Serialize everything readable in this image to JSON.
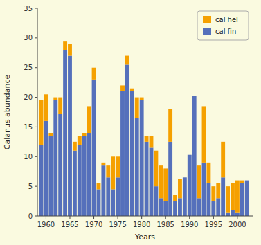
{
  "chart_data": {
    "type": "bar",
    "stacked": true,
    "xlabel": "Years",
    "ylabel": "Calanus abundance",
    "x": [
      1959,
      1960,
      1961,
      1962,
      1963,
      1964,
      1965,
      1966,
      1967,
      1968,
      1969,
      1970,
      1971,
      1972,
      1973,
      1974,
      1975,
      1976,
      1977,
      1978,
      1979,
      1980,
      1981,
      1982,
      1983,
      1984,
      1985,
      1986,
      1987,
      1988,
      1989,
      1990,
      1991,
      1992,
      1993,
      1994,
      1995,
      1996,
      1997,
      1998,
      1999,
      2000,
      2001,
      2002
    ],
    "series": [
      {
        "name": "cal fin",
        "color": "#5570bb",
        "values": [
          12.0,
          16.0,
          13.5,
          19.5,
          17.2,
          28.0,
          27.0,
          11.0,
          12.0,
          13.5,
          14.0,
          23.0,
          4.5,
          8.5,
          6.5,
          4.5,
          6.5,
          21.0,
          25.5,
          21.0,
          16.5,
          19.5,
          12.5,
          11.5,
          5.0,
          3.0,
          2.5,
          12.5,
          2.5,
          3.0,
          6.5,
          10.3,
          20.3,
          3.0,
          9.0,
          5.5,
          2.5,
          3.0,
          6.5,
          0.5,
          1.0,
          0.5,
          5.5,
          6.0
        ]
      },
      {
        "name": "cal hel",
        "color": "#f5a000",
        "values": [
          7.5,
          4.5,
          0.5,
          0.5,
          2.8,
          1.5,
          2.0,
          1.5,
          1.5,
          0.5,
          4.5,
          2.0,
          1.0,
          0.5,
          2.0,
          5.5,
          3.5,
          1.0,
          1.5,
          0.5,
          3.5,
          0.5,
          1.0,
          2.0,
          6.0,
          5.5,
          5.5,
          5.5,
          1.0,
          3.2,
          0.0,
          0.0,
          0.0,
          5.5,
          9.5,
          3.5,
          2.5,
          2.5,
          6.0,
          4.5,
          4.5,
          5.5,
          0.5,
          0.0
        ]
      }
    ],
    "xlim": [
      1958.2,
      2003.2
    ],
    "xticks": [
      1960,
      1965,
      1970,
      1975,
      1980,
      1985,
      1990,
      1995,
      2000
    ],
    "ylim": [
      0,
      35
    ],
    "yticks": [
      0,
      5,
      10,
      15,
      20,
      25,
      30,
      35
    ],
    "grid": false,
    "legend": "upper right"
  }
}
